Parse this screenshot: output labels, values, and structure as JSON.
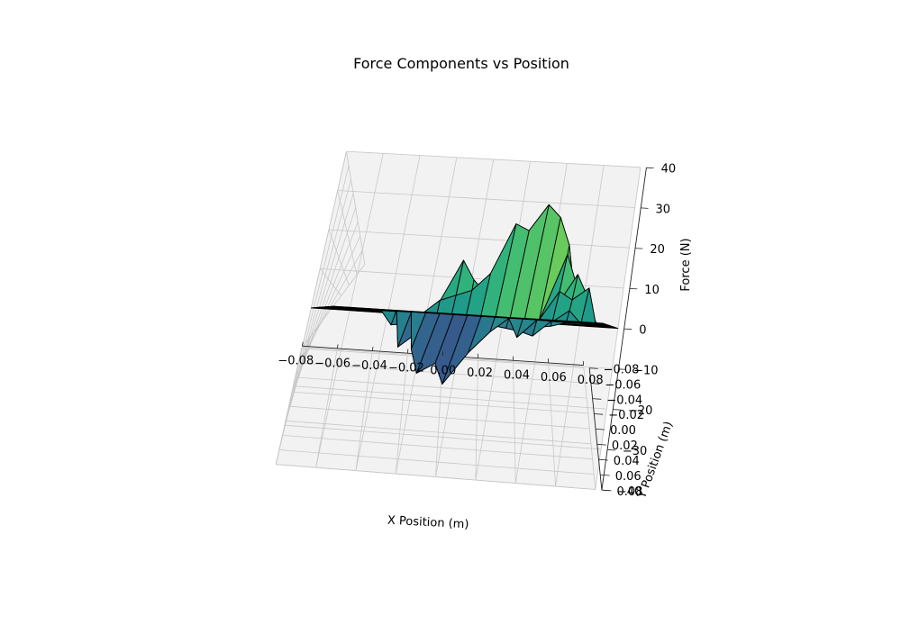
{
  "chart_data": {
    "type": "surface3d",
    "title": "Force Components vs Position",
    "xlabel": "X Position (m)",
    "ylabel": "Y Position (m)",
    "zlabel": "Force (N)",
    "xlim": [
      -0.08,
      0.08
    ],
    "ylim": [
      -0.08,
      0.08
    ],
    "zlim": [
      -40,
      40
    ],
    "xticks": [
      "−0.08",
      "−0.06",
      "−0.04",
      "−0.02",
      "0.00",
      "0.02",
      "0.04",
      "0.06",
      "0.08"
    ],
    "yticks": [
      "−0.08",
      "−0.06",
      "−0.04",
      "−0.02",
      "0.00",
      "0.02",
      "0.04",
      "0.06",
      "0.08"
    ],
    "zticks": [
      "−40",
      "−30",
      "−20",
      "−10",
      "0",
      "10",
      "20",
      "30",
      "40"
    ],
    "colormap": "viridis",
    "grid": true,
    "x": [
      -0.08,
      -0.072,
      -0.064,
      -0.056,
      -0.048,
      -0.04,
      -0.032,
      -0.024,
      -0.016,
      -0.008,
      0,
      0.008,
      0.016,
      0.024,
      0.032,
      0.04,
      0.048,
      0.056,
      0.064,
      0.072,
      0.08
    ],
    "y": [
      -0.08,
      -0.072,
      -0.064,
      -0.056,
      -0.048,
      -0.04,
      -0.032,
      -0.024,
      -0.016,
      -0.008,
      0,
      0.008,
      0.016,
      0.024,
      0.032,
      0.04,
      0.048,
      0.056,
      0.064,
      0.072,
      0.08
    ],
    "z": [
      [
        0,
        0,
        0,
        0,
        0,
        0,
        0,
        0,
        0,
        0,
        0,
        0,
        0,
        0,
        0,
        0,
        0,
        0,
        0,
        0,
        0
      ],
      [
        0,
        0,
        0,
        0,
        0,
        0,
        0,
        0,
        0,
        0,
        0,
        0,
        0,
        0,
        0,
        0,
        0,
        0,
        0,
        0,
        0
      ],
      [
        0,
        0,
        0,
        0,
        0,
        0,
        0,
        0,
        0,
        0,
        0,
        0,
        0,
        0,
        0,
        0,
        0,
        0,
        0,
        0,
        0
      ],
      [
        0,
        0,
        0,
        0,
        0,
        0,
        0,
        0,
        0,
        0,
        0,
        0,
        0,
        0,
        0,
        0,
        0,
        0,
        0,
        0,
        0
      ],
      [
        0,
        0,
        0,
        0,
        0,
        0,
        0,
        0,
        0,
        0,
        0,
        0,
        0,
        0,
        0,
        0,
        0,
        0,
        0,
        0,
        0
      ],
      [
        0,
        0,
        0,
        0,
        0,
        0,
        0,
        -20,
        -33,
        -27,
        -38,
        -20,
        -8,
        0,
        -10,
        0,
        0,
        0,
        0,
        0,
        0
      ],
      [
        0,
        0,
        0,
        0,
        0,
        0,
        -18,
        -10,
        -6,
        -4,
        -3,
        -3,
        -4,
        -5,
        -6,
        -8,
        0,
        0,
        0,
        0,
        0
      ],
      [
        0,
        0,
        0,
        0,
        0,
        0,
        -10,
        -6,
        0,
        0,
        0,
        0,
        0,
        0,
        -3,
        -5,
        0,
        0,
        0,
        0,
        0
      ],
      [
        0,
        0,
        0,
        0,
        0,
        -6,
        -5,
        0,
        0,
        0,
        0,
        0,
        0,
        0,
        0,
        -3,
        -2,
        0,
        0,
        0,
        0
      ],
      [
        0,
        0,
        0,
        0,
        0,
        -4,
        -4,
        0,
        0,
        0,
        0,
        0,
        0,
        0,
        0,
        0,
        0,
        5,
        0,
        0,
        0
      ],
      [
        0,
        0,
        0,
        0,
        0,
        0,
        -3,
        0,
        0,
        0,
        0,
        0,
        0,
        0,
        0,
        0,
        12,
        9,
        14,
        0,
        0
      ],
      [
        0,
        0,
        0,
        0,
        0,
        0,
        0,
        0,
        0,
        0,
        0,
        0,
        0,
        0,
        0,
        0,
        6,
        18,
        10,
        0,
        0
      ],
      [
        0,
        0,
        0,
        0,
        0,
        0,
        0,
        0,
        0,
        0,
        0,
        0,
        0,
        0,
        0,
        0,
        24,
        14,
        8,
        0,
        0
      ],
      [
        0,
        0,
        0,
        0,
        0,
        0,
        0,
        0,
        5,
        7,
        9,
        15,
        32,
        30,
        39,
        35,
        26,
        10,
        0,
        0,
        0
      ],
      [
        0,
        0,
        0,
        0,
        0,
        0,
        0,
        0,
        4,
        18,
        12,
        8,
        6,
        0,
        0,
        0,
        0,
        0,
        0,
        0,
        0
      ],
      [
        0,
        0,
        0,
        0,
        0,
        0,
        0,
        0,
        0,
        0,
        0,
        0,
        0,
        0,
        0,
        0,
        0,
        0,
        0,
        0,
        0
      ],
      [
        0,
        0,
        0,
        0,
        0,
        0,
        0,
        0,
        0,
        0,
        0,
        0,
        0,
        0,
        0,
        0,
        0,
        0,
        0,
        0,
        0
      ],
      [
        0,
        0,
        0,
        0,
        0,
        0,
        0,
        0,
        0,
        0,
        0,
        0,
        0,
        0,
        0,
        0,
        0,
        0,
        0,
        0,
        0
      ],
      [
        0,
        0,
        0,
        0,
        0,
        0,
        0,
        0,
        0,
        0,
        0,
        0,
        0,
        0,
        0,
        0,
        0,
        0,
        0,
        0,
        0
      ],
      [
        0,
        0,
        0,
        0,
        0,
        0,
        0,
        0,
        0,
        0,
        0,
        0,
        0,
        0,
        0,
        0,
        0,
        0,
        0,
        0,
        0
      ],
      [
        0,
        0,
        0,
        0,
        0,
        0,
        0,
        0,
        0,
        0,
        0,
        0,
        0,
        0,
        0,
        0,
        0,
        0,
        0,
        0,
        0
      ]
    ]
  }
}
